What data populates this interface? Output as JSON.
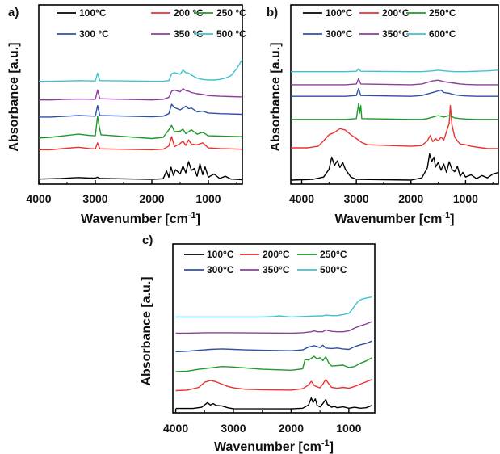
{
  "chart_data": [
    {
      "panel_label": "a)",
      "type": "line",
      "xlabel": "Wavenumber [cm",
      "xlabel_sup": "-1",
      "xlabel_end": "]",
      "ylabel": "Absorbance [a.u.]",
      "xlim": [
        4000,
        400
      ],
      "x_ticks": [
        4000,
        3000,
        2000,
        1000
      ],
      "legend_placement": "top",
      "series": [
        {
          "name": "100°C",
          "color": "#000000",
          "x": [
            4000,
            3600,
            3300,
            3100,
            3000,
            2960,
            2920,
            2000,
            1800,
            1740,
            1700,
            1660,
            1620,
            1580,
            1500,
            1450,
            1400,
            1350,
            1300,
            1250,
            1200,
            1150,
            1100,
            1060,
            1000,
            900,
            800,
            700,
            600,
            500,
            400
          ],
          "y": [
            0.06,
            0.08,
            0.11,
            0.09,
            0.09,
            0.12,
            0.08,
            0.05,
            0.07,
            0.32,
            0.12,
            0.44,
            0.18,
            0.36,
            0.22,
            0.48,
            0.26,
            0.62,
            0.34,
            0.4,
            0.15,
            0.55,
            0.2,
            0.45,
            0.12,
            0.22,
            0.08,
            0.15,
            0.06,
            0.05,
            0.04
          ]
        },
        {
          "name": "200 °C",
          "color": "#e8332f",
          "x": [
            4000,
            3800,
            3500,
            3300,
            3100,
            3000,
            2960,
            2920,
            2000,
            1800,
            1700,
            1650,
            1600,
            1500,
            1450,
            1400,
            1350,
            1300,
            1200,
            1100,
            1000,
            800,
            600,
            400
          ],
          "y": [
            1.0,
            1.0,
            1.05,
            1.08,
            1.04,
            1.03,
            1.22,
            1.03,
            1.0,
            1.02,
            1.12,
            1.42,
            1.1,
            1.2,
            1.28,
            1.14,
            1.32,
            1.18,
            1.16,
            1.22,
            1.06,
            1.04,
            1.03,
            1.02
          ]
        },
        {
          "name": "250 °C",
          "color": "#1e9a2a",
          "x": [
            4000,
            3800,
            3500,
            3300,
            3100,
            3000,
            2960,
            2930,
            2900,
            2000,
            1800,
            1700,
            1650,
            1600,
            1500,
            1450,
            1400,
            1300,
            1200,
            1100,
            1000,
            800,
            600,
            400
          ],
          "y": [
            1.38,
            1.4,
            1.46,
            1.5,
            1.46,
            1.45,
            2.08,
            1.74,
            1.48,
            1.36,
            1.4,
            1.64,
            1.78,
            1.58,
            1.6,
            1.66,
            1.52,
            1.64,
            1.5,
            1.56,
            1.45,
            1.44,
            1.43,
            1.42
          ]
        },
        {
          "name": "300 °C",
          "color": "#2f4fa8",
          "x": [
            4000,
            3800,
            3500,
            3300,
            3000,
            2960,
            2920,
            2000,
            1800,
            1700,
            1650,
            1600,
            1500,
            1400,
            1350,
            1300,
            1200,
            1100,
            1000,
            800,
            600,
            400
          ],
          "y": [
            2.05,
            2.05,
            2.08,
            2.1,
            2.08,
            2.42,
            2.1,
            2.06,
            2.08,
            2.16,
            2.46,
            2.36,
            2.28,
            2.4,
            2.32,
            2.34,
            2.22,
            2.24,
            2.18,
            2.16,
            2.15,
            2.14
          ]
        },
        {
          "name": "350 °C",
          "color": "#8e3c9e",
          "x": [
            4000,
            3800,
            3500,
            3300,
            3000,
            2960,
            2920,
            2000,
            1800,
            1700,
            1650,
            1600,
            1500,
            1450,
            1400,
            1350,
            1300,
            1200,
            1100,
            1000,
            800,
            600,
            400
          ],
          "y": [
            2.6,
            2.6,
            2.62,
            2.63,
            2.62,
            2.92,
            2.64,
            2.6,
            2.62,
            2.68,
            2.88,
            2.92,
            2.86,
            2.96,
            2.9,
            2.88,
            2.84,
            2.8,
            2.78,
            2.74,
            2.72,
            2.71,
            2.7
          ]
        },
        {
          "name": "500 °C",
          "color": "#3cc3cf",
          "x": [
            4000,
            3800,
            3500,
            3300,
            3000,
            2960,
            2920,
            2000,
            1800,
            1700,
            1650,
            1600,
            1500,
            1450,
            1400,
            1350,
            1300,
            1200,
            1100,
            1000,
            900,
            800,
            700,
            600,
            500,
            400
          ],
          "y": [
            3.2,
            3.2,
            3.21,
            3.22,
            3.21,
            3.46,
            3.22,
            3.2,
            3.2,
            3.22,
            3.44,
            3.48,
            3.42,
            3.56,
            3.48,
            3.46,
            3.4,
            3.3,
            3.26,
            3.24,
            3.24,
            3.26,
            3.3,
            3.38,
            3.6,
            3.9
          ]
        }
      ]
    },
    {
      "panel_label": "b)",
      "type": "line",
      "xlabel": "Wavenumber [cm",
      "xlabel_sup": "-1",
      "xlabel_end": "]",
      "ylabel": "Absorbance [a.u.]",
      "xlim": [
        4200,
        400
      ],
      "x_ticks": [
        4000,
        3000,
        2000,
        1000
      ],
      "legend_placement": "top",
      "series": [
        {
          "name": "100°C",
          "color": "#000000",
          "x": [
            4200,
            3800,
            3600,
            3500,
            3450,
            3400,
            3350,
            3300,
            3250,
            3200,
            3100,
            3000,
            2000,
            1800,
            1700,
            1660,
            1620,
            1580,
            1550,
            1500,
            1450,
            1400,
            1350,
            1300,
            1250,
            1200,
            1150,
            1100,
            1050,
            1000,
            900,
            800,
            700,
            600,
            500,
            400
          ],
          "y": [
            0.02,
            0.04,
            0.1,
            0.3,
            0.62,
            0.4,
            0.52,
            0.35,
            0.48,
            0.3,
            0.1,
            0.04,
            0.02,
            0.08,
            0.34,
            0.7,
            0.5,
            0.62,
            0.36,
            0.48,
            0.28,
            0.44,
            0.22,
            0.5,
            0.3,
            0.24,
            0.38,
            0.12,
            0.22,
            0.1,
            0.16,
            0.06,
            0.14,
            0.08,
            0.18,
            0.22
          ]
        },
        {
          "name": "200°C",
          "color": "#e8332f",
          "x": [
            4200,
            3900,
            3700,
            3600,
            3500,
            3400,
            3300,
            3200,
            3100,
            3000,
            2900,
            2800,
            2000,
            1800,
            1700,
            1650,
            1600,
            1550,
            1500,
            1450,
            1400,
            1350,
            1300,
            1280,
            1250,
            1200,
            1150,
            1100,
            1000,
            900,
            800,
            700,
            600,
            500,
            400
          ],
          "y": [
            0.86,
            0.86,
            0.9,
            1.04,
            1.2,
            1.26,
            1.36,
            1.32,
            1.2,
            1.1,
            1.0,
            0.94,
            0.9,
            0.92,
            1.04,
            1.18,
            1.02,
            1.1,
            1.04,
            1.14,
            1.06,
            1.28,
            1.5,
            1.96,
            1.46,
            1.14,
            1.04,
            0.96,
            0.94,
            0.9,
            0.88,
            0.86,
            0.84,
            0.84,
            0.84
          ]
        },
        {
          "name": "250°C",
          "color": "#1e9a2a",
          "x": [
            4200,
            3800,
            3500,
            3200,
            3000,
            2960,
            2940,
            2920,
            2900,
            2000,
            1800,
            1700,
            1600,
            1500,
            1400,
            1300,
            1200,
            1100,
            1000,
            800,
            600,
            400
          ],
          "y": [
            1.6,
            1.6,
            1.6,
            1.6,
            1.62,
            2.0,
            1.76,
            1.96,
            1.62,
            1.6,
            1.6,
            1.62,
            1.66,
            1.7,
            1.66,
            1.7,
            1.64,
            1.62,
            1.61,
            1.6,
            1.6,
            1.6
          ]
        },
        {
          "name": "300°C",
          "color": "#2f4fa8",
          "x": [
            4200,
            3800,
            3500,
            3200,
            3000,
            2960,
            2920,
            2000,
            1800,
            1700,
            1600,
            1500,
            1450,
            1400,
            1300,
            1200,
            1100,
            1000,
            800,
            600,
            400
          ],
          "y": [
            2.2,
            2.2,
            2.2,
            2.2,
            2.22,
            2.4,
            2.22,
            2.2,
            2.22,
            2.26,
            2.3,
            2.34,
            2.36,
            2.3,
            2.28,
            2.24,
            2.22,
            2.21,
            2.2,
            2.2,
            2.2
          ]
        },
        {
          "name": "350°C",
          "color": "#8e3c9e",
          "x": [
            4200,
            3800,
            3500,
            3200,
            3000,
            2960,
            2920,
            2000,
            1800,
            1700,
            1600,
            1500,
            1400,
            1300,
            1200,
            1100,
            1000,
            800,
            600,
            400
          ],
          "y": [
            2.5,
            2.5,
            2.5,
            2.5,
            2.52,
            2.66,
            2.52,
            2.5,
            2.52,
            2.56,
            2.6,
            2.62,
            2.58,
            2.56,
            2.54,
            2.52,
            2.51,
            2.5,
            2.5,
            2.5
          ]
        },
        {
          "name": "600°C",
          "color": "#3cc3cf",
          "x": [
            4200,
            3800,
            3500,
            3200,
            3000,
            2960,
            2920,
            2000,
            1800,
            1600,
            1500,
            1400,
            1300,
            1200,
            1000,
            800,
            600,
            400
          ],
          "y": [
            2.84,
            2.84,
            2.84,
            2.84,
            2.85,
            2.92,
            2.85,
            2.84,
            2.84,
            2.86,
            2.88,
            2.86,
            2.85,
            2.84,
            2.84,
            2.85,
            2.86,
            2.88
          ]
        }
      ]
    },
    {
      "panel_label": "c)",
      "type": "line",
      "xlabel": "Wavenumber [cm",
      "xlabel_sup": "-1",
      "xlabel_end": "]",
      "ylabel": "Absorbance [a.u.]",
      "xlim": [
        4050,
        550
      ],
      "x_ticks": [
        4000,
        3000,
        2000,
        1000
      ],
      "legend_placement": "top",
      "series": [
        {
          "name": "100°C",
          "color": "#000000",
          "x": [
            4000,
            3700,
            3550,
            3450,
            3400,
            3350,
            3300,
            3200,
            3100,
            3000,
            2000,
            1800,
            1700,
            1650,
            1620,
            1580,
            1550,
            1500,
            1450,
            1400,
            1370,
            1330,
            1300,
            1250,
            1200,
            1100,
            1000,
            900,
            800,
            700,
            600
          ],
          "y": [
            0.05,
            0.05,
            0.1,
            0.3,
            0.2,
            0.26,
            0.18,
            0.16,
            0.08,
            0.04,
            0.03,
            0.06,
            0.2,
            0.5,
            0.3,
            0.46,
            0.18,
            0.12,
            0.26,
            0.44,
            0.22,
            0.18,
            0.1,
            0.14,
            0.08,
            0.12,
            0.06,
            0.1,
            0.06,
            0.08,
            0.18
          ]
        },
        {
          "name": "200°C",
          "color": "#e8332f",
          "x": [
            4000,
            3800,
            3600,
            3500,
            3400,
            3300,
            3200,
            3100,
            3000,
            2800,
            2500,
            2000,
            1800,
            1700,
            1650,
            1600,
            1550,
            1500,
            1450,
            1400,
            1350,
            1300,
            1200,
            1100,
            1000,
            900,
            800,
            700,
            600
          ],
          "y": [
            0.82,
            0.84,
            0.96,
            1.18,
            1.26,
            1.2,
            1.1,
            1.0,
            0.94,
            0.88,
            0.86,
            0.84,
            0.9,
            1.06,
            1.22,
            1.04,
            0.98,
            0.94,
            1.1,
            1.3,
            1.12,
            0.96,
            0.92,
            0.96,
            0.92,
            1.0,
            1.1,
            1.2,
            1.3
          ]
        },
        {
          "name": "250°C",
          "color": "#1e9a2a",
          "x": [
            4000,
            3800,
            3600,
            3400,
            3200,
            3000,
            2800,
            2500,
            2000,
            1800,
            1760,
            1700,
            1650,
            1600,
            1550,
            1500,
            1450,
            1400,
            1350,
            1300,
            1200,
            1100,
            1000,
            900,
            800,
            700,
            600
          ],
          "y": [
            1.64,
            1.66,
            1.74,
            1.8,
            1.86,
            1.84,
            1.8,
            1.74,
            1.7,
            1.76,
            2.16,
            2.14,
            2.22,
            2.3,
            2.18,
            2.24,
            2.12,
            2.28,
            2.02,
            1.88,
            1.9,
            1.92,
            1.82,
            1.86,
            2.0,
            2.1,
            2.24
          ]
        },
        {
          "name": "300°C",
          "color": "#2f4fa8",
          "x": [
            4000,
            3800,
            3600,
            3400,
            3200,
            3000,
            2800,
            2500,
            2000,
            1800,
            1700,
            1600,
            1500,
            1450,
            1400,
            1300,
            1200,
            1100,
            1000,
            900,
            800,
            700,
            600
          ],
          "y": [
            2.5,
            2.52,
            2.56,
            2.6,
            2.62,
            2.6,
            2.58,
            2.56,
            2.54,
            2.58,
            2.7,
            2.76,
            2.68,
            2.78,
            2.66,
            2.64,
            2.66,
            2.62,
            2.6,
            2.72,
            2.8,
            2.86,
            2.96
          ]
        },
        {
          "name": "350°C",
          "color": "#8e3c9e",
          "x": [
            4000,
            3800,
            3500,
            3200,
            3000,
            2500,
            2000,
            1800,
            1650,
            1600,
            1550,
            1450,
            1400,
            1300,
            1200,
            1100,
            1000,
            900,
            800,
            700,
            600
          ],
          "y": [
            3.3,
            3.3,
            3.32,
            3.32,
            3.32,
            3.31,
            3.3,
            3.32,
            3.36,
            3.4,
            3.36,
            3.36,
            3.44,
            3.38,
            3.36,
            3.36,
            3.4,
            3.52,
            3.62,
            3.7,
            3.8
          ]
        },
        {
          "name": "500°C",
          "color": "#3cc3cf",
          "x": [
            4000,
            3800,
            3500,
            3000,
            2500,
            2300,
            2200,
            2100,
            2000,
            1800,
            1600,
            1450,
            1400,
            1300,
            1200,
            1100,
            1000,
            950,
            900,
            850,
            800,
            700,
            600
          ],
          "y": [
            4.0,
            4.0,
            4.0,
            4.0,
            4.0,
            4.02,
            4.05,
            4.02,
            4.0,
            4.02,
            4.04,
            4.05,
            4.08,
            4.06,
            4.06,
            4.1,
            4.16,
            4.3,
            4.48,
            4.64,
            4.74,
            4.82,
            4.86
          ]
        }
      ]
    }
  ]
}
